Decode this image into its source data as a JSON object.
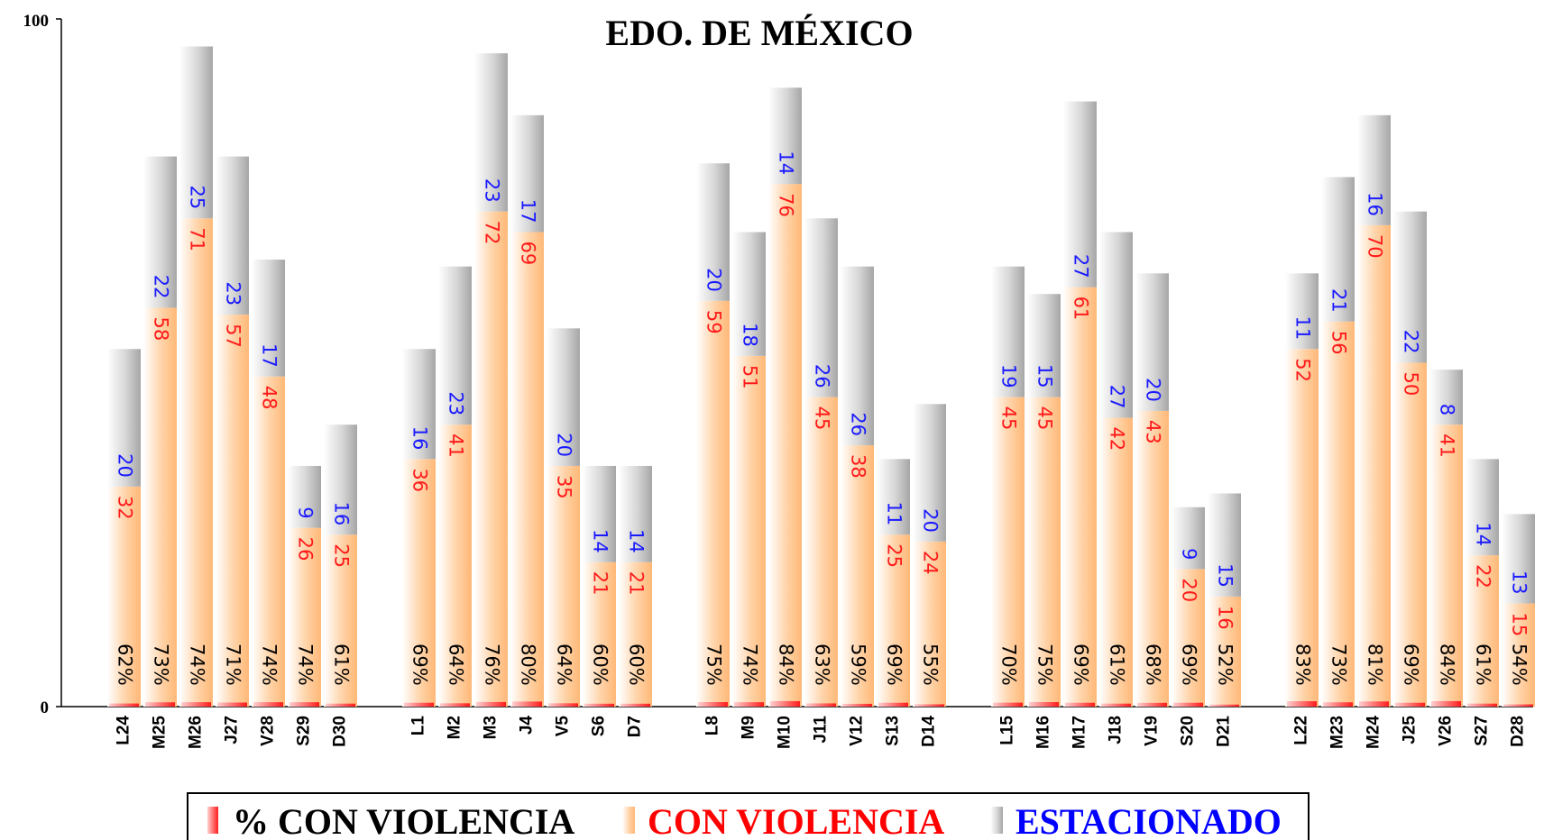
{
  "chart_data": {
    "type": "bar",
    "stacked": true,
    "title": "EDO. DE MÉXICO",
    "ylim": [
      0,
      100
    ],
    "y_ticks": [
      "0",
      "100"
    ],
    "groups": [
      {
        "categories": [
          "L24",
          "M25",
          "M26",
          "J27",
          "V28",
          "S29",
          "D30"
        ],
        "con_violencia": [
          32,
          58,
          71,
          57,
          48,
          26,
          25
        ],
        "estacionado": [
          20,
          22,
          25,
          23,
          17,
          9,
          16
        ],
        "pct_con_violencia": [
          "62%",
          "73%",
          "74%",
          "71%",
          "74%",
          "74%",
          "61%"
        ]
      },
      {
        "categories": [
          "L1",
          "M2",
          "M3",
          "J4",
          "V5",
          "S6",
          "D7"
        ],
        "con_violencia": [
          36,
          41,
          72,
          69,
          35,
          21,
          21
        ],
        "estacionado": [
          16,
          23,
          23,
          17,
          20,
          14,
          14
        ],
        "pct_con_violencia": [
          "69%",
          "64%",
          "76%",
          "80%",
          "64%",
          "60%",
          "60%"
        ]
      },
      {
        "categories": [
          "L8",
          "M9",
          "M10",
          "J11",
          "V12",
          "S13",
          "D14"
        ],
        "con_violencia": [
          59,
          51,
          76,
          45,
          38,
          25,
          24
        ],
        "estacionado": [
          20,
          18,
          14,
          26,
          26,
          11,
          20
        ],
        "pct_con_violencia": [
          "75%",
          "74%",
          "84%",
          "63%",
          "59%",
          "69%",
          "55%"
        ]
      },
      {
        "categories": [
          "L15",
          "M16",
          "M17",
          "J18",
          "V19",
          "S20",
          "D21"
        ],
        "con_violencia": [
          45,
          45,
          61,
          42,
          43,
          20,
          16
        ],
        "estacionado": [
          19,
          15,
          27,
          27,
          20,
          9,
          15
        ],
        "pct_con_violencia": [
          "70%",
          "75%",
          "69%",
          "61%",
          "68%",
          "69%",
          "52%"
        ]
      },
      {
        "categories": [
          "L22",
          "M23",
          "M24",
          "J25",
          "V26",
          "S27",
          "D28"
        ],
        "con_violencia": [
          52,
          56,
          70,
          50,
          41,
          22,
          15
        ],
        "estacionado": [
          11,
          21,
          16,
          22,
          8,
          14,
          13
        ],
        "pct_con_violencia": [
          "83%",
          "73%",
          "81%",
          "69%",
          "84%",
          "61%",
          "54%"
        ]
      }
    ],
    "legend": [
      {
        "name": "% CON VIOLENCIA",
        "color": "#ff2020"
      },
      {
        "name": "CON VIOLENCIA",
        "color": "#ff0000"
      },
      {
        "name": "ESTACIONADO",
        "color": "#0000ff"
      }
    ],
    "legend_position": "bottom",
    "colors": {
      "con_fill": "#ffc58f",
      "est_fill": "#b8b8b8",
      "pct_fill": "#ff2a2a",
      "pct_label": "#000000",
      "con_label": "#ff1a1a",
      "est_label": "#1a1aff"
    }
  }
}
